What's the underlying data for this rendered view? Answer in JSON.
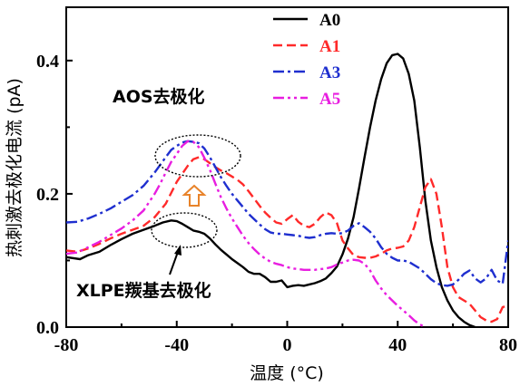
{
  "chart_data": {
    "type": "line",
    "xlabel": "温度 (°C)",
    "ylabel": "热刺激去极化电流 (pA)",
    "xlim": [
      -80,
      80
    ],
    "ylim": [
      0,
      0.48
    ],
    "x_ticks": [
      "-80",
      "-40",
      "0",
      "40",
      "80"
    ],
    "x_tick_values": [
      -80,
      -40,
      0,
      40,
      80
    ],
    "y_ticks": [
      "0.0",
      "0.2",
      "0.4"
    ],
    "y_tick_values": [
      0.0,
      0.2,
      0.4
    ],
    "legend_position": "top-right",
    "series": [
      {
        "name": "A0",
        "color": "#000000",
        "dash": "solid",
        "x": [
          -80,
          -75,
          -72,
          -68,
          -64,
          -60,
          -56,
          -52,
          -48,
          -45,
          -42,
          -40,
          -38,
          -36,
          -34,
          -32,
          -30,
          -28,
          -26,
          -24,
          -22,
          -20,
          -18,
          -16,
          -14,
          -12,
          -10,
          -8,
          -6,
          -4,
          -2,
          0,
          2,
          4,
          6,
          8,
          10,
          12,
          14,
          16,
          18,
          20,
          22,
          24,
          26,
          28,
          30,
          32,
          34,
          36,
          38,
          40,
          42,
          44,
          46,
          48,
          50,
          52,
          54,
          56,
          58,
          60,
          62,
          64,
          66,
          68
        ],
        "y": [
          0.105,
          0.102,
          0.108,
          0.113,
          0.123,
          0.132,
          0.14,
          0.146,
          0.152,
          0.157,
          0.16,
          0.159,
          0.155,
          0.15,
          0.145,
          0.143,
          0.14,
          0.133,
          0.124,
          0.116,
          0.109,
          0.102,
          0.096,
          0.09,
          0.083,
          0.08,
          0.08,
          0.075,
          0.068,
          0.068,
          0.07,
          0.06,
          0.062,
          0.063,
          0.062,
          0.064,
          0.066,
          0.069,
          0.073,
          0.081,
          0.091,
          0.109,
          0.133,
          0.165,
          0.208,
          0.255,
          0.3,
          0.34,
          0.372,
          0.396,
          0.408,
          0.41,
          0.403,
          0.38,
          0.34,
          0.27,
          0.19,
          0.13,
          0.09,
          0.06,
          0.04,
          0.025,
          0.015,
          0.008,
          0.003,
          0.0
        ]
      },
      {
        "name": "A1",
        "color": "#ff2a2a",
        "dash": "dashed",
        "x": [
          -80,
          -76,
          -72,
          -68,
          -64,
          -60,
          -56,
          -52,
          -48,
          -44,
          -40,
          -36,
          -34,
          -32,
          -30,
          -28,
          -26,
          -24,
          -22,
          -20,
          -18,
          -16,
          -14,
          -12,
          -10,
          -8,
          -6,
          -4,
          -2,
          0,
          2,
          4,
          6,
          8,
          10,
          12,
          14,
          16,
          18,
          20,
          22,
          24,
          26,
          28,
          30,
          32,
          34,
          36,
          38,
          40,
          42,
          44,
          46,
          48,
          50,
          52,
          54,
          56,
          58,
          60,
          62,
          64,
          66,
          68,
          70,
          72,
          74,
          76,
          78,
          80
        ],
        "y": [
          0.115,
          0.113,
          0.118,
          0.125,
          0.133,
          0.14,
          0.146,
          0.152,
          0.165,
          0.185,
          0.218,
          0.242,
          0.252,
          0.255,
          0.252,
          0.246,
          0.24,
          0.235,
          0.231,
          0.226,
          0.221,
          0.214,
          0.204,
          0.193,
          0.182,
          0.172,
          0.164,
          0.157,
          0.155,
          0.162,
          0.168,
          0.158,
          0.152,
          0.15,
          0.155,
          0.165,
          0.172,
          0.168,
          0.156,
          0.13,
          0.118,
          0.108,
          0.105,
          0.104,
          0.104,
          0.106,
          0.11,
          0.115,
          0.118,
          0.119,
          0.121,
          0.13,
          0.15,
          0.18,
          0.21,
          0.222,
          0.2,
          0.15,
          0.09,
          0.06,
          0.045,
          0.04,
          0.035,
          0.025,
          0.015,
          0.01,
          0.008,
          0.012,
          0.03,
          0.032
        ]
      },
      {
        "name": "A3",
        "color": "#1f2fcf",
        "dash": "dashdot",
        "x": [
          -80,
          -76,
          -72,
          -68,
          -64,
          -60,
          -56,
          -52,
          -48,
          -44,
          -42,
          -40,
          -38,
          -36,
          -34,
          -32,
          -30,
          -28,
          -26,
          -24,
          -22,
          -20,
          -18,
          -16,
          -14,
          -12,
          -10,
          -8,
          -6,
          -4,
          -2,
          0,
          2,
          4,
          6,
          8,
          10,
          12,
          14,
          16,
          18,
          20,
          22,
          24,
          26,
          28,
          30,
          32,
          34,
          36,
          38,
          40,
          42,
          44,
          46,
          48,
          50,
          52,
          54,
          56,
          58,
          60,
          62,
          64,
          66,
          68,
          70,
          72,
          74,
          76,
          78,
          80
        ],
        "y": [
          0.157,
          0.158,
          0.163,
          0.17,
          0.178,
          0.188,
          0.198,
          0.212,
          0.232,
          0.255,
          0.266,
          0.272,
          0.277,
          0.279,
          0.278,
          0.276,
          0.268,
          0.255,
          0.24,
          0.225,
          0.212,
          0.2,
          0.19,
          0.18,
          0.17,
          0.162,
          0.154,
          0.147,
          0.142,
          0.14,
          0.14,
          0.139,
          0.138,
          0.137,
          0.135,
          0.134,
          0.135,
          0.138,
          0.14,
          0.141,
          0.14,
          0.141,
          0.145,
          0.152,
          0.156,
          0.15,
          0.143,
          0.133,
          0.12,
          0.11,
          0.104,
          0.1,
          0.1,
          0.098,
          0.093,
          0.088,
          0.08,
          0.072,
          0.066,
          0.063,
          0.062,
          0.064,
          0.071,
          0.08,
          0.085,
          0.073,
          0.067,
          0.073,
          0.086,
          0.07,
          0.065,
          0.13
        ]
      },
      {
        "name": "A5",
        "color": "#e81ee0",
        "dash": "dashdotdot",
        "x": [
          -80,
          -76,
          -72,
          -68,
          -64,
          -60,
          -56,
          -52,
          -48,
          -46,
          -44,
          -42,
          -40,
          -38,
          -36,
          -34,
          -32,
          -30,
          -28,
          -26,
          -24,
          -22,
          -20,
          -18,
          -16,
          -14,
          -12,
          -10,
          -8,
          -6,
          -4,
          -2,
          0,
          2,
          4,
          6,
          8,
          10,
          12,
          14,
          16,
          18,
          20,
          22,
          24,
          26,
          28,
          30,
          32,
          34,
          36,
          38,
          40,
          42,
          44,
          46,
          48,
          50
        ],
        "y": [
          0.11,
          0.112,
          0.12,
          0.128,
          0.138,
          0.148,
          0.16,
          0.175,
          0.2,
          0.215,
          0.232,
          0.248,
          0.26,
          0.272,
          0.279,
          0.278,
          0.27,
          0.254,
          0.236,
          0.215,
          0.195,
          0.178,
          0.163,
          0.15,
          0.137,
          0.126,
          0.117,
          0.109,
          0.103,
          0.098,
          0.095,
          0.093,
          0.09,
          0.088,
          0.087,
          0.086,
          0.086,
          0.086,
          0.087,
          0.088,
          0.09,
          0.094,
          0.097,
          0.1,
          0.101,
          0.1,
          0.095,
          0.085,
          0.07,
          0.058,
          0.048,
          0.04,
          0.032,
          0.025,
          0.018,
          0.01,
          0.004,
          0.0
        ]
      }
    ],
    "annotations": {
      "aos_label": "AOS去极化",
      "xlpe_label": "XLPE羰基去极化"
    },
    "colors": {
      "arrow_orange": "#e8832a",
      "ellipse": "#000000"
    }
  }
}
